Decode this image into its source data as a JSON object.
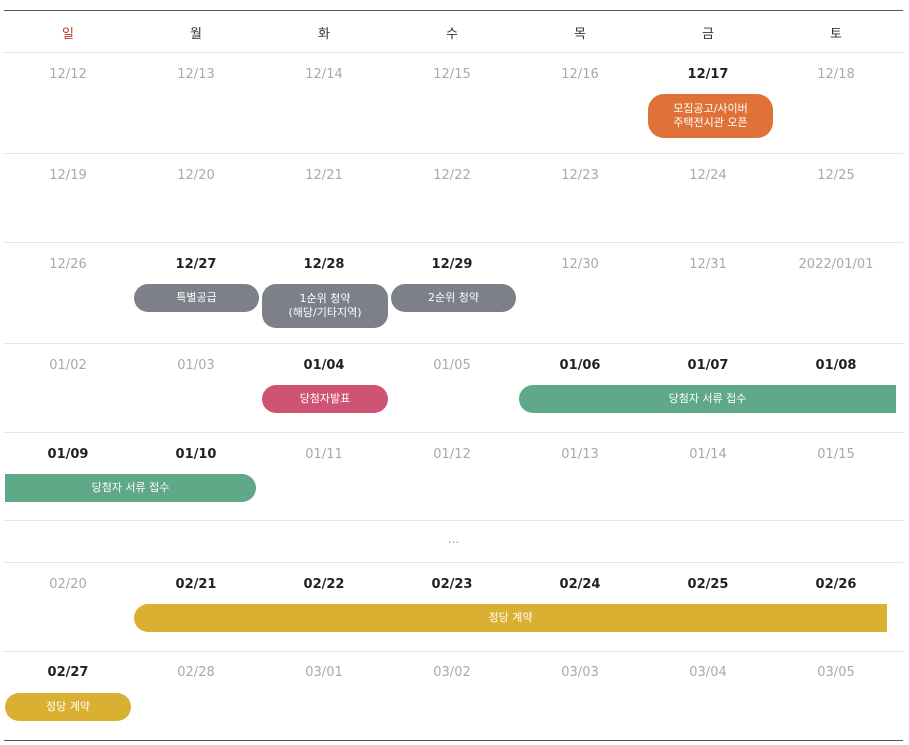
{
  "weekdays": [
    "일",
    "월",
    "화",
    "수",
    "목",
    "금",
    "토"
  ],
  "weeks": [
    {
      "dates": [
        "12/12",
        "12/13",
        "12/14",
        "12/15",
        "12/16",
        "12/17",
        "12/18"
      ]
    },
    {
      "dates": [
        "12/19",
        "12/20",
        "12/21",
        "12/22",
        "12/23",
        "12/24",
        "12/25"
      ]
    },
    {
      "dates": [
        "12/26",
        "12/27",
        "12/28",
        "12/29",
        "12/30",
        "12/31",
        "2022/01/01"
      ]
    },
    {
      "dates": [
        "01/02",
        "01/03",
        "01/04",
        "01/05",
        "01/06",
        "01/07",
        "01/08"
      ]
    },
    {
      "dates": [
        "01/09",
        "01/10",
        "01/11",
        "01/12",
        "01/13",
        "01/14",
        "01/15"
      ]
    },
    {
      "ellipsis": "..."
    },
    {
      "dates": [
        "02/20",
        "02/21",
        "02/22",
        "02/23",
        "02/24",
        "02/25",
        "02/26"
      ]
    },
    {
      "dates": [
        "02/27",
        "02/28",
        "03/01",
        "03/02",
        "03/03",
        "03/04",
        "03/05"
      ]
    }
  ],
  "events": {
    "notice_line1": "모집공고/사이버",
    "notice_line2": "주택전시관 오픈",
    "special_supply": "특별공급",
    "first_priority_line1": "1순위 청약",
    "first_priority_line2": "(해당/기타지역)",
    "second_priority": "2순위 청약",
    "winner_announcement": "당첨자발표",
    "winner_docs": "당첨자 서류 접수",
    "contract": "정당 계약"
  },
  "colors": {
    "sunday": "#c0392b",
    "notice": "#e07237",
    "subscription": "#7d8089",
    "announcement": "#cf5473",
    "documents": "#5fa888",
    "contract": "#dab032"
  }
}
